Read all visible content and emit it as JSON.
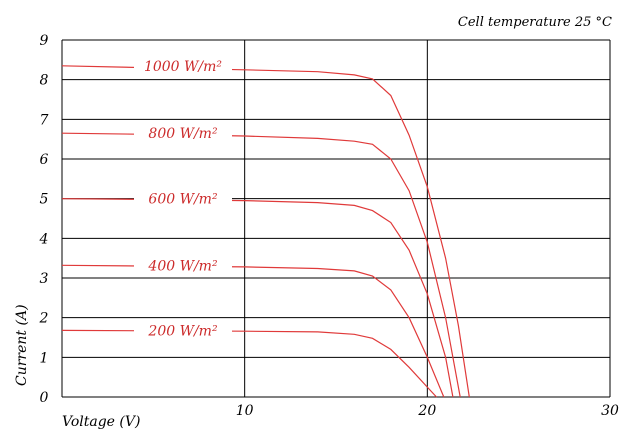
{
  "chart_data": {
    "type": "line",
    "title": "",
    "annotation": "Cell temperature 25 °C",
    "xlabel": "Voltage (V)",
    "ylabel": "Current (A)",
    "xlim": [
      0,
      30
    ],
    "ylim": [
      0,
      9
    ],
    "x_ticks": [
      10,
      20,
      30
    ],
    "y_ticks": [
      0,
      1,
      2,
      3,
      4,
      5,
      6,
      7,
      8,
      9
    ],
    "grid": true,
    "line_color": "#e03a3a",
    "label_color": "#cc2b2b",
    "series": [
      {
        "name": "1000 W/m²",
        "points": [
          [
            0,
            8.35
          ],
          [
            5,
            8.3
          ],
          [
            10,
            8.25
          ],
          [
            14,
            8.2
          ],
          [
            16,
            8.12
          ],
          [
            17,
            8.02
          ],
          [
            18,
            7.6
          ],
          [
            19,
            6.6
          ],
          [
            20,
            5.3
          ],
          [
            21,
            3.5
          ],
          [
            21.7,
            1.8
          ],
          [
            22.3,
            0
          ]
        ]
      },
      {
        "name": "800 W/m²",
        "points": [
          [
            0,
            6.65
          ],
          [
            5,
            6.62
          ],
          [
            10,
            6.58
          ],
          [
            14,
            6.52
          ],
          [
            16,
            6.45
          ],
          [
            17,
            6.37
          ],
          [
            18,
            6.0
          ],
          [
            19,
            5.2
          ],
          [
            20,
            3.9
          ],
          [
            21,
            2.0
          ],
          [
            21.8,
            0
          ]
        ]
      },
      {
        "name": "600 W/m²",
        "points": [
          [
            0,
            5.0
          ],
          [
            5,
            4.98
          ],
          [
            10,
            4.95
          ],
          [
            14,
            4.9
          ],
          [
            16,
            4.83
          ],
          [
            17,
            4.7
          ],
          [
            18,
            4.4
          ],
          [
            19,
            3.7
          ],
          [
            20,
            2.6
          ],
          [
            21,
            1.0
          ],
          [
            21.4,
            0
          ]
        ]
      },
      {
        "name": "400 W/m²",
        "points": [
          [
            0,
            3.32
          ],
          [
            5,
            3.3
          ],
          [
            10,
            3.28
          ],
          [
            14,
            3.24
          ],
          [
            16,
            3.18
          ],
          [
            17,
            3.05
          ],
          [
            18,
            2.7
          ],
          [
            19,
            2.0
          ],
          [
            20,
            1.0
          ],
          [
            20.9,
            0
          ]
        ]
      },
      {
        "name": "200 W/m²",
        "points": [
          [
            0,
            1.68
          ],
          [
            5,
            1.67
          ],
          [
            10,
            1.66
          ],
          [
            14,
            1.64
          ],
          [
            16,
            1.58
          ],
          [
            17,
            1.48
          ],
          [
            18,
            1.2
          ],
          [
            19,
            0.75
          ],
          [
            20,
            0.25
          ],
          [
            20.5,
            0
          ]
        ]
      }
    ]
  }
}
